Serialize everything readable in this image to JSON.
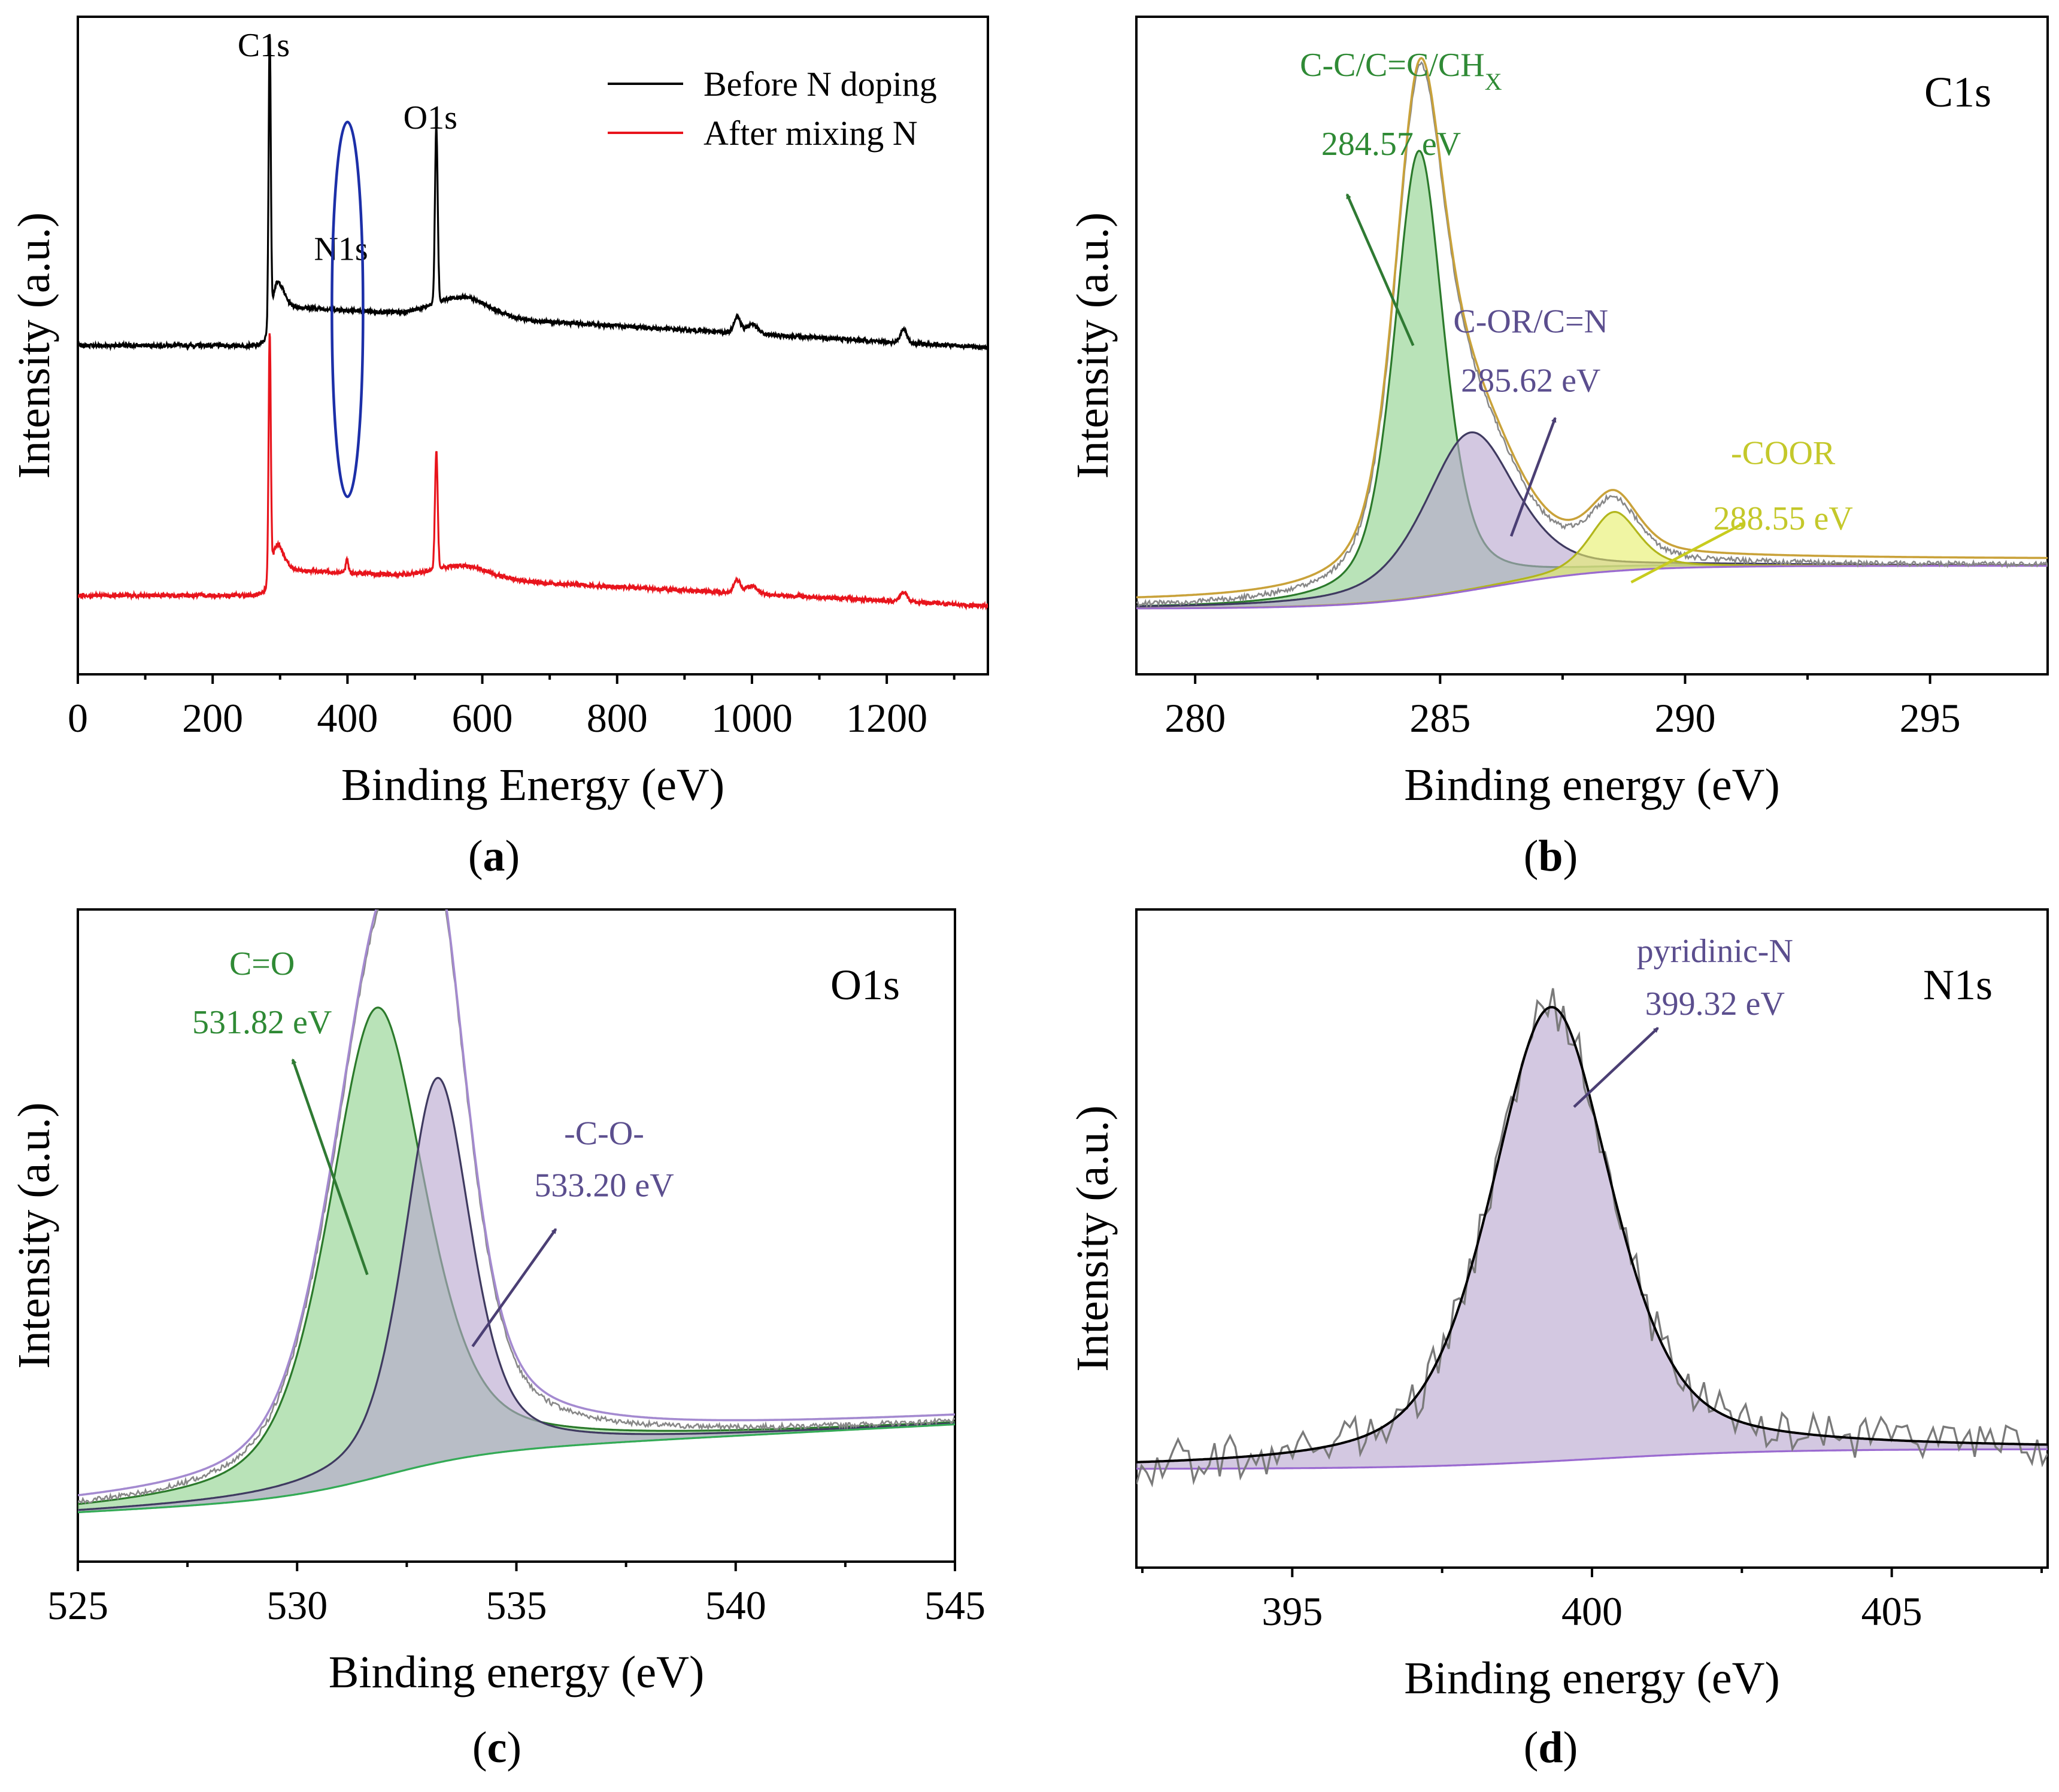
{
  "figure": {
    "panels": [
      "(a)",
      "(b)",
      "(c)",
      "(d)"
    ]
  },
  "chart_data": [
    {
      "id": "a",
      "type": "line",
      "panel_label": "(a)",
      "xlabel": "Binding Energy (eV)",
      "ylabel": "Intensity (a.u.)",
      "xlim": [
        0,
        1350
      ],
      "ylim": [
        0,
        1
      ],
      "xticks": [
        0,
        200,
        400,
        600,
        800,
        1000,
        1200
      ],
      "legend": {
        "position": "top-right",
        "entries": [
          {
            "label": "Before N doping",
            "color": "#000000"
          },
          {
            "label": "After mixing N",
            "color": "#e8141c"
          }
        ]
      },
      "annotations": [
        {
          "text": "C1s",
          "x": 284.6
        },
        {
          "text": "N1s",
          "x": 399.3
        },
        {
          "text": "O1s",
          "x": 531.8
        }
      ],
      "highlight_ellipse": {
        "x": 400,
        "y_range": [
          0.27,
          0.84
        ],
        "color": "#1c2fa8"
      },
      "series": [
        {
          "name": "Before N doping",
          "color": "#000000",
          "baseline": 0.5,
          "tail": 0.56,
          "peaks": [
            {
              "x": 284.6,
              "h": 0.44,
              "w": 1.6
            },
            {
              "x": 295,
              "h": 0.04,
              "w": 10
            },
            {
              "x": 531.8,
              "h": 0.27,
              "w": 2.0
            },
            {
              "x": 570,
              "h": 0.03,
              "w": 40
            },
            {
              "x": 978,
              "h": 0.025,
              "w": 5
            },
            {
              "x": 1000,
              "h": 0.015,
              "w": 8
            },
            {
              "x": 1225,
              "h": 0.02,
              "w": 5
            }
          ]
        },
        {
          "name": "After mixing N",
          "color": "#e8141c",
          "baseline": 0.12,
          "tail": 0.16,
          "peaks": [
            {
              "x": 284.6,
              "h": 0.37,
              "w": 1.6
            },
            {
              "x": 295,
              "h": 0.04,
              "w": 10
            },
            {
              "x": 399.3,
              "h": 0.02,
              "w": 2.0
            },
            {
              "x": 531.8,
              "h": 0.18,
              "w": 2.0
            },
            {
              "x": 570,
              "h": 0.02,
              "w": 40
            },
            {
              "x": 978,
              "h": 0.02,
              "w": 5
            },
            {
              "x": 1000,
              "h": 0.012,
              "w": 8
            },
            {
              "x": 1225,
              "h": 0.015,
              "w": 5
            }
          ]
        }
      ]
    },
    {
      "id": "b",
      "type": "area",
      "panel_label": "(b)",
      "title": "C1s",
      "xlabel": "Binding energy (eV)",
      "ylabel": "Intensity (a.u.)",
      "xlim": [
        278.8,
        297.4
      ],
      "ylim": [
        0,
        1
      ],
      "xticks": [
        280,
        285,
        290,
        295
      ],
      "background": {
        "low": 0.1,
        "high": 0.165,
        "center": 286.0,
        "width": 1.3
      },
      "envelope_color": "#c9a23a",
      "components": [
        {
          "label": "C-C/C=C/CH",
          "label_sub": "X",
          "energy_label": "284.57 eV",
          "center": 284.57,
          "amplitude": 0.68,
          "fwhm": 1.2,
          "fill": "#8ed28c",
          "stroke": "#2b7a2b",
          "label_color": "#2f8a35",
          "label_x": 284.2,
          "label_y": 0.91,
          "energy_x": 284.0,
          "energy_y": 0.79,
          "arrow_from": [
            284.45,
            0.5
          ],
          "arrow_to": [
            283.1,
            0.73
          ]
        },
        {
          "label": "C-OR/C=N",
          "energy_label": "285.62 eV",
          "center": 285.62,
          "amplitude": 0.24,
          "fwhm": 2.2,
          "fill": "#b8a6cf",
          "stroke": "#3f3a60",
          "label_color": "#5b4e8e",
          "label_x": 286.85,
          "label_y": 0.52,
          "energy_x": 286.85,
          "energy_y": 0.43,
          "arrow_from": [
            286.45,
            0.21
          ],
          "arrow_to": [
            287.35,
            0.39
          ]
        },
        {
          "label": "-COOR",
          "energy_label": "288.55 eV",
          "center": 288.55,
          "amplitude": 0.09,
          "fwhm": 1.2,
          "fill": "#e6ef6a",
          "stroke": "#b2b61c",
          "label_color": "#c4c82a",
          "label_x": 292.0,
          "label_y": 0.32,
          "energy_x": 292.0,
          "energy_y": 0.22,
          "arrow_from": [
            288.9,
            0.14
          ],
          "arrow_to": [
            291.2,
            0.23
          ]
        }
      ]
    },
    {
      "id": "c",
      "type": "area",
      "panel_label": "(c)",
      "title": "O1s",
      "xlabel": "Binding energy (eV)",
      "ylabel": "Intensity (a.u.)",
      "xlim": [
        525,
        545
      ],
      "ylim": [
        0,
        1
      ],
      "xticks": [
        525,
        530,
        535,
        540,
        545
      ],
      "background": {
        "low": 0.1,
        "high": 0.165,
        "center": 532.0,
        "width": 1.2,
        "slope": 0.0035
      },
      "envelope_color": "#a48ad0",
      "baseline_color": "#33aa55",
      "components": [
        {
          "label": "C=O",
          "energy_label": "531.82 eV",
          "center": 531.82,
          "amplitude": 0.72,
          "fwhm": 2.6,
          "fill": "#8ed28c",
          "stroke": "#2b7a2b",
          "label_color": "#2f8a35",
          "label_x": 529.2,
          "label_y": 0.9,
          "energy_x": 529.2,
          "energy_y": 0.81,
          "arrow_from": [
            531.6,
            0.44
          ],
          "arrow_to": [
            529.9,
            0.77
          ]
        },
        {
          "label": "-C-O-",
          "energy_label": "533.20 eV",
          "center": 533.2,
          "amplitude": 0.59,
          "fwhm": 1.8,
          "fill": "#b8a6cf",
          "stroke": "#3f3a60",
          "label_color": "#5b4e8e",
          "label_x": 537.0,
          "label_y": 0.64,
          "energy_x": 537.0,
          "energy_y": 0.56,
          "arrow_from": [
            534.0,
            0.33
          ],
          "arrow_to": [
            535.9,
            0.51
          ]
        }
      ]
    },
    {
      "id": "d",
      "type": "area",
      "panel_label": "(d)",
      "title": "N1s",
      "xlabel": "Binding energy (eV)",
      "ylabel": "Intensity (a.u.)",
      "xlim": [
        392.4,
        407.6
      ],
      "ylim": [
        0,
        1
      ],
      "xticks": [
        395,
        400,
        405
      ],
      "background": {
        "low": 0.15,
        "high": 0.18,
        "center": 400.0,
        "width": 1.5
      },
      "envelope_color": "#000000",
      "raw_noise": 0.035,
      "components": [
        {
          "label": "pyridinic-N",
          "energy_label": "399.32 eV",
          "center": 399.32,
          "amplitude": 0.69,
          "fwhm": 2.4,
          "fill": "#b8a6cf",
          "stroke": "#000000",
          "label_color": "#5b4e8e",
          "label_x": 402.05,
          "label_y": 0.92,
          "energy_x": 402.05,
          "energy_y": 0.84,
          "arrow_from": [
            399.7,
            0.7
          ],
          "arrow_to": [
            401.1,
            0.82
          ]
        }
      ]
    }
  ]
}
